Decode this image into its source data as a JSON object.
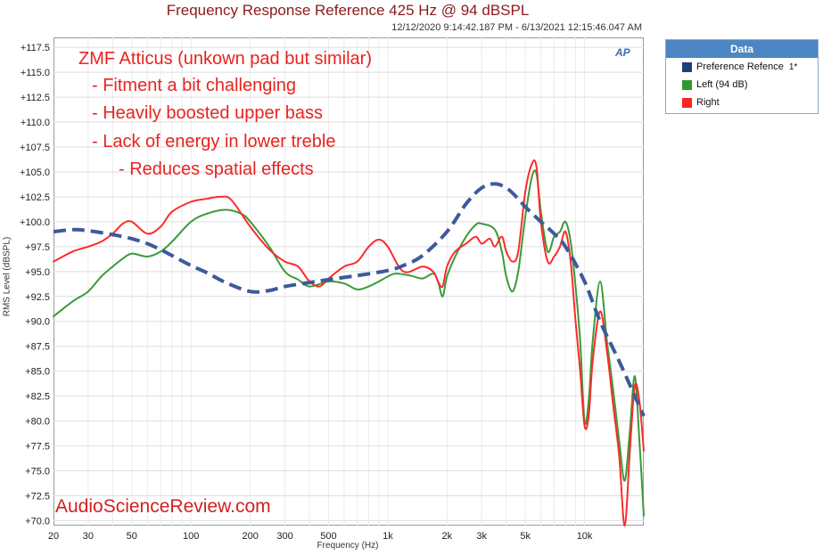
{
  "title": "Frequency Response Reference 425 Hz @ 94 dBSPL",
  "date_range": "12/12/2020 9:14:42.187 PM - 6/13/2021 12:15:46.047 AM",
  "logo_text": "AP",
  "watermark": "AudioScienceReview.com",
  "annotations": [
    "ZMF Atticus (unkown pad but similar)",
    "- Fitment a bit challenging",
    "- Heavily boosted upper bass",
    "- Lack of energy in lower treble",
    "- Reduces spatial effects"
  ],
  "legend": {
    "title": "Data",
    "entries": [
      {
        "label": "Preference Refence",
        "extra": "1*",
        "color": "#1f3f7a"
      },
      {
        "label": "Left (94 dB)",
        "extra": "",
        "color": "#2e9a2e"
      },
      {
        "label": "Right",
        "extra": "",
        "color": "#ff2222"
      }
    ]
  },
  "chart_data": {
    "type": "line",
    "title": "Frequency Response Reference 425 Hz @ 94 dBSPL",
    "xlabel": "Frequency (Hz)",
    "ylabel": "RMS Level (dBSPL)",
    "x_scale": "log",
    "xlim": [
      20,
      20000
    ],
    "ylim": [
      69.5,
      118.5
    ],
    "x_ticks": [
      {
        "v": 20,
        "label": "20"
      },
      {
        "v": 30,
        "label": "30"
      },
      {
        "v": 50,
        "label": "50"
      },
      {
        "v": 100,
        "label": "100"
      },
      {
        "v": 200,
        "label": "200"
      },
      {
        "v": 300,
        "label": "300"
      },
      {
        "v": 500,
        "label": "500"
      },
      {
        "v": 1000,
        "label": "1k"
      },
      {
        "v": 2000,
        "label": "2k"
      },
      {
        "v": 3000,
        "label": "3k"
      },
      {
        "v": 5000,
        "label": "5k"
      },
      {
        "v": 10000,
        "label": "10k"
      }
    ],
    "y_ticks": [
      {
        "v": 117.5,
        "label": "+117.5"
      },
      {
        "v": 115,
        "label": "+115.0"
      },
      {
        "v": 112.5,
        "label": "+112.5"
      },
      {
        "v": 110,
        "label": "+110.0"
      },
      {
        "v": 107.5,
        "label": "+107.5"
      },
      {
        "v": 105,
        "label": "+105.0"
      },
      {
        "v": 102.5,
        "label": "+102.5"
      },
      {
        "v": 100,
        "label": "+100.0"
      },
      {
        "v": 97.5,
        "label": "+97.5"
      },
      {
        "v": 95,
        "label": "+95.0"
      },
      {
        "v": 92.5,
        "label": "+92.5"
      },
      {
        "v": 90,
        "label": "+90.0"
      },
      {
        "v": 87.5,
        "label": "+87.5"
      },
      {
        "v": 85,
        "label": "+85.0"
      },
      {
        "v": 82.5,
        "label": "+82.5"
      },
      {
        "v": 80,
        "label": "+80.0"
      },
      {
        "v": 77.5,
        "label": "+77.5"
      },
      {
        "v": 75,
        "label": "+75.0"
      },
      {
        "v": 72.5,
        "label": "+72.5"
      },
      {
        "v": 70,
        "label": "+70.0"
      }
    ],
    "grid": true,
    "series": [
      {
        "name": "Preference Refence",
        "color": "#3d5a9a",
        "dashed": true,
        "points": [
          [
            20,
            99.0
          ],
          [
            25,
            99.2
          ],
          [
            30,
            99.1
          ],
          [
            40,
            98.7
          ],
          [
            50,
            98.3
          ],
          [
            60,
            97.8
          ],
          [
            70,
            97.2
          ],
          [
            80,
            96.6
          ],
          [
            100,
            95.6
          ],
          [
            120,
            94.9
          ],
          [
            150,
            93.9
          ],
          [
            200,
            93.0
          ],
          [
            250,
            93.1
          ],
          [
            300,
            93.5
          ],
          [
            400,
            93.9
          ],
          [
            500,
            94.2
          ],
          [
            700,
            94.6
          ],
          [
            1000,
            95.1
          ],
          [
            1200,
            95.6
          ],
          [
            1500,
            96.6
          ],
          [
            2000,
            99.0
          ],
          [
            2500,
            101.8
          ],
          [
            3000,
            103.4
          ],
          [
            3500,
            103.8
          ],
          [
            4000,
            103.4
          ],
          [
            4500,
            102.5
          ],
          [
            5000,
            101.5
          ],
          [
            6000,
            100.0
          ],
          [
            7000,
            98.8
          ],
          [
            8000,
            97.5
          ],
          [
            10000,
            94.0
          ],
          [
            12000,
            90.0
          ],
          [
            15000,
            86.0
          ],
          [
            18000,
            82.5
          ],
          [
            20000,
            80.5
          ]
        ]
      },
      {
        "name": "Left (94 dB)",
        "color": "#3a9a3a",
        "dashed": false,
        "points": [
          [
            20,
            90.5
          ],
          [
            25,
            92.0
          ],
          [
            30,
            93.0
          ],
          [
            35,
            94.5
          ],
          [
            40,
            95.5
          ],
          [
            45,
            96.3
          ],
          [
            50,
            96.8
          ],
          [
            60,
            96.5
          ],
          [
            70,
            97.0
          ],
          [
            80,
            98.0
          ],
          [
            100,
            100.0
          ],
          [
            120,
            100.8
          ],
          [
            150,
            101.2
          ],
          [
            180,
            100.8
          ],
          [
            200,
            100.0
          ],
          [
            250,
            97.5
          ],
          [
            300,
            95.0
          ],
          [
            350,
            94.2
          ],
          [
            400,
            93.5
          ],
          [
            500,
            94.0
          ],
          [
            600,
            93.8
          ],
          [
            700,
            93.2
          ],
          [
            800,
            93.5
          ],
          [
            900,
            94.0
          ],
          [
            1000,
            94.5
          ],
          [
            1100,
            94.8
          ],
          [
            1300,
            94.6
          ],
          [
            1500,
            94.3
          ],
          [
            1700,
            94.8
          ],
          [
            1800,
            94.0
          ],
          [
            1900,
            92.5
          ],
          [
            2000,
            94.5
          ],
          [
            2200,
            96.5
          ],
          [
            2500,
            98.5
          ],
          [
            2800,
            99.7
          ],
          [
            3000,
            99.8
          ],
          [
            3500,
            99.2
          ],
          [
            3800,
            97.0
          ],
          [
            4000,
            94.5
          ],
          [
            4300,
            93.0
          ],
          [
            4600,
            95.0
          ],
          [
            5000,
            100.5
          ],
          [
            5400,
            104.5
          ],
          [
            5700,
            104.8
          ],
          [
            6000,
            101.0
          ],
          [
            6500,
            97.0
          ],
          [
            7000,
            98.5
          ],
          [
            7500,
            99.0
          ],
          [
            8000,
            100.0
          ],
          [
            8500,
            98.0
          ],
          [
            9000,
            93.5
          ],
          [
            9500,
            88.0
          ],
          [
            10000,
            80.0
          ],
          [
            10500,
            82.0
          ],
          [
            11000,
            88.0
          ],
          [
            12000,
            94.0
          ],
          [
            13000,
            88.0
          ],
          [
            14000,
            83.0
          ],
          [
            15000,
            78.0
          ],
          [
            16000,
            74.0
          ],
          [
            17000,
            79.0
          ],
          [
            18000,
            84.5
          ],
          [
            19000,
            78.0
          ],
          [
            20000,
            70.5
          ]
        ]
      },
      {
        "name": "Right",
        "color": "#ff2a2a",
        "dashed": false,
        "points": [
          [
            20,
            96.0
          ],
          [
            25,
            97.0
          ],
          [
            30,
            97.5
          ],
          [
            35,
            98.0
          ],
          [
            40,
            98.8
          ],
          [
            45,
            99.8
          ],
          [
            50,
            100.0
          ],
          [
            60,
            98.8
          ],
          [
            70,
            99.5
          ],
          [
            80,
            101.0
          ],
          [
            100,
            102.0
          ],
          [
            120,
            102.3
          ],
          [
            140,
            102.5
          ],
          [
            160,
            102.2
          ],
          [
            200,
            99.5
          ],
          [
            250,
            97.2
          ],
          [
            300,
            96.0
          ],
          [
            350,
            95.5
          ],
          [
            400,
            94.0
          ],
          [
            450,
            93.5
          ],
          [
            500,
            94.3
          ],
          [
            600,
            95.5
          ],
          [
            700,
            96.0
          ],
          [
            800,
            97.5
          ],
          [
            900,
            98.2
          ],
          [
            1000,
            97.5
          ],
          [
            1200,
            95.0
          ],
          [
            1500,
            95.5
          ],
          [
            1700,
            95.0
          ],
          [
            1800,
            94.0
          ],
          [
            1900,
            93.5
          ],
          [
            2000,
            95.5
          ],
          [
            2200,
            97.0
          ],
          [
            2500,
            97.8
          ],
          [
            2800,
            98.5
          ],
          [
            3000,
            97.8
          ],
          [
            3300,
            98.3
          ],
          [
            3500,
            97.5
          ],
          [
            3800,
            98.5
          ],
          [
            4000,
            97.0
          ],
          [
            4300,
            96.0
          ],
          [
            4600,
            97.0
          ],
          [
            5000,
            103.0
          ],
          [
            5400,
            105.8
          ],
          [
            5700,
            105.5
          ],
          [
            6000,
            100.0
          ],
          [
            6500,
            96.0
          ],
          [
            7000,
            96.5
          ],
          [
            7500,
            97.5
          ],
          [
            8000,
            99.0
          ],
          [
            8500,
            96.0
          ],
          [
            9000,
            90.0
          ],
          [
            9500,
            85.0
          ],
          [
            10000,
            79.5
          ],
          [
            10500,
            80.5
          ],
          [
            11000,
            86.0
          ],
          [
            12000,
            91.0
          ],
          [
            13000,
            87.0
          ],
          [
            14000,
            81.5
          ],
          [
            15000,
            76.5
          ],
          [
            16000,
            69.5
          ],
          [
            17000,
            77.0
          ],
          [
            18000,
            83.5
          ],
          [
            19000,
            82.0
          ],
          [
            20000,
            77.0
          ]
        ]
      }
    ]
  }
}
